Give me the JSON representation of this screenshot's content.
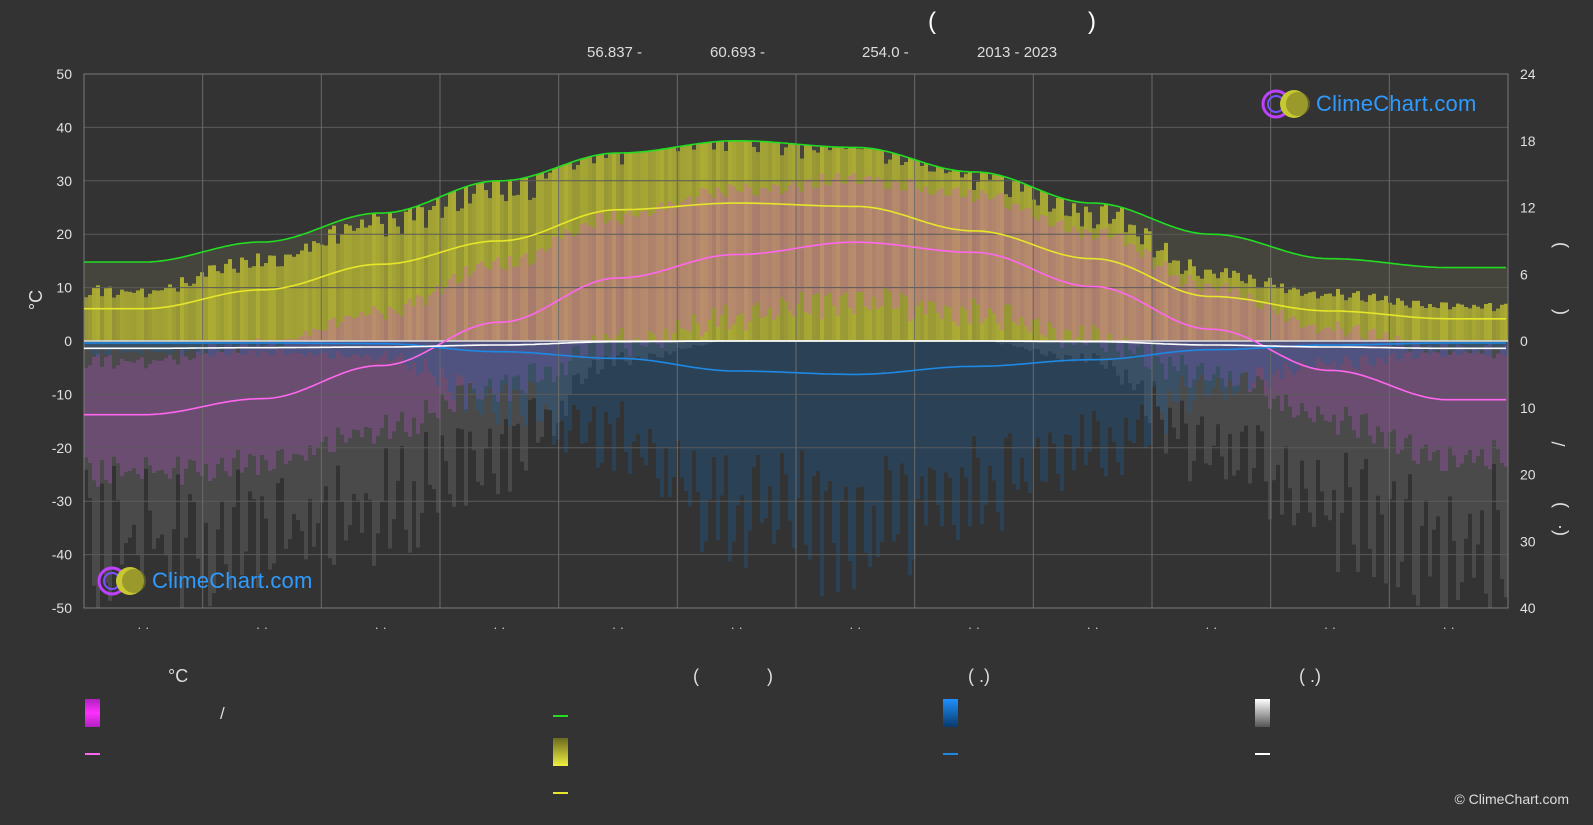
{
  "header": {
    "open_paren": "(",
    "close_paren": ")",
    "lat": "56.837 -",
    "lon": "60.693 -",
    "elev": "254.0 -",
    "years": "2013 - 2023"
  },
  "logo_text": "ClimeChart.com",
  "copyright": "© ClimeChart.com",
  "colors": {
    "background": "#333333",
    "grid": "#5a5a5a",
    "daylight": "#22dd22",
    "sunshine": "#e6e62a",
    "mean_temp": "#ff66ee",
    "rain": "#1e88e5",
    "snow": "#ffffff",
    "temp_band": "#e040fb",
    "sunshine_band": "#c8c832"
  },
  "chart_data": {
    "type": "line",
    "title": "",
    "left_axis": {
      "label": "°C",
      "ylim": [
        -50,
        50
      ],
      "ticks": [
        "50",
        "40",
        "30",
        "20",
        "10",
        "0",
        "-10",
        "-20",
        "-30",
        "-40",
        "-50"
      ]
    },
    "right_axis_top": {
      "ylim": [
        0,
        24
      ],
      "ticks": [
        "24",
        "18",
        "12",
        "6",
        "0"
      ],
      "label_glyphs": [
        ")",
        "("
      ]
    },
    "right_axis_bottom": {
      "ylim": [
        0,
        40
      ],
      "ticks": [
        "0",
        "10",
        "20",
        "30",
        "40"
      ],
      "label_glyphs": [
        "/",
        ")",
        "(·"
      ]
    },
    "months": 12,
    "month_labels": [
      "· ·",
      "· ·",
      "· ·",
      "· ·",
      "· ·",
      "· ·",
      "· ·",
      "· ·",
      "· ·",
      "· ·",
      "· ·",
      "· ·"
    ],
    "series": [
      {
        "key": "daylight",
        "axis": "right_top",
        "values": [
          7.1,
          8.9,
          11.5,
          14.4,
          16.9,
          18.0,
          17.4,
          15.2,
          12.4,
          9.6,
          7.4,
          6.6
        ]
      },
      {
        "key": "sunshine",
        "axis": "right_top",
        "values": [
          2.9,
          4.6,
          6.9,
          9.0,
          11.8,
          12.4,
          12.1,
          9.9,
          7.4,
          4.0,
          2.7,
          2.0
        ]
      },
      {
        "key": "mean_temp",
        "axis": "left",
        "values": [
          -13.8,
          -10.8,
          -4.6,
          3.5,
          11.8,
          16.2,
          18.5,
          16.6,
          10.2,
          2.2,
          -5.5,
          -11.0
        ]
      },
      {
        "key": "rain",
        "axis": "right_bottom",
        "values": [
          0.3,
          0.3,
          0.4,
          1.6,
          2.6,
          4.5,
          5.0,
          3.8,
          2.8,
          1.3,
          0.6,
          0.3
        ]
      },
      {
        "key": "snow",
        "axis": "right_bottom",
        "values": [
          1.1,
          1.0,
          0.9,
          0.6,
          0.1,
          0.0,
          0.0,
          0.0,
          0.1,
          0.6,
          0.9,
          1.1
        ]
      }
    ],
    "band_high": [
      -6,
      -3,
      3,
      12,
      21,
      26,
      28,
      25,
      18,
      8,
      0,
      -4
    ],
    "band_low": [
      -20,
      -18,
      -12,
      -4,
      4,
      9,
      12,
      10,
      5,
      -2,
      -10,
      -17
    ]
  },
  "legend": {
    "col1_head": "°C",
    "col1_slash": "/",
    "col2_head_open": "(",
    "col2_head_close": ")",
    "col3_head": "(   .)",
    "col4_head": "(   .)"
  }
}
